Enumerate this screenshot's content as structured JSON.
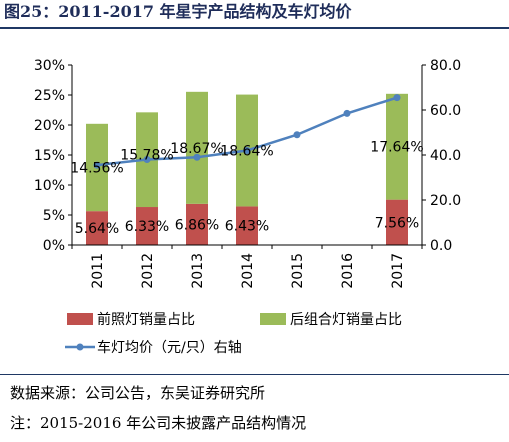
{
  "title": "图25：2011-2017 年星宇产品结构及车灯均价",
  "footer": {
    "source": "数据来源：公司公告，东吴证券研究所",
    "note": "注：2015-2016 年公司未披露产品结构情况"
  },
  "colors": {
    "front": "#c0504d",
    "rear": "#9bbb59",
    "line": "#4f81bd",
    "title_rule": "#1f3864"
  },
  "chart_data": {
    "type": "bar",
    "stacked": true,
    "categories": [
      "2011",
      "2012",
      "2013",
      "2014",
      "2015",
      "2016",
      "2017"
    ],
    "series": [
      {
        "name": "前照灯销量占比",
        "axis": "left",
        "values": [
          5.64,
          6.33,
          6.86,
          6.43,
          null,
          null,
          7.56
        ],
        "labels": [
          "5.64%",
          "6.33%",
          "6.86%",
          "6.43%",
          "",
          "",
          "7.56%"
        ]
      },
      {
        "name": "后组合灯销量占比",
        "axis": "left",
        "values": [
          14.56,
          15.78,
          18.67,
          18.64,
          null,
          null,
          17.64
        ],
        "labels": [
          "14.56%",
          "15.78%",
          "18.67%",
          "18.64%",
          "",
          "",
          "17.64%"
        ]
      },
      {
        "name": "车灯均价（元/只）右轴",
        "axis": "right",
        "type": "line",
        "values": [
          35.5,
          38.0,
          39.0,
          42.0,
          49.0,
          58.5,
          65.5
        ]
      }
    ],
    "y_left": {
      "min": 0,
      "max": 30,
      "step": 5,
      "ticks": [
        "0%",
        "5%",
        "10%",
        "15%",
        "20%",
        "25%",
        "30%"
      ]
    },
    "y_right": {
      "min": 0,
      "max": 80,
      "step": 20,
      "ticks": [
        "0.0",
        "20.0",
        "40.0",
        "60.0",
        "80.0"
      ]
    },
    "grid": false,
    "legend_position": "bottom"
  }
}
